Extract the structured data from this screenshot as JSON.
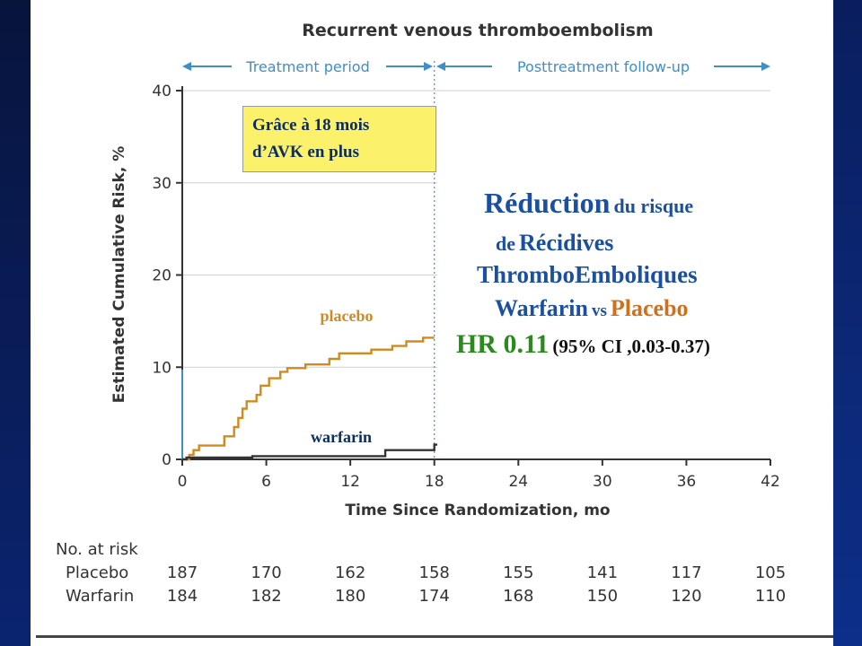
{
  "chart_data": {
    "type": "line",
    "title": "Recurrent venous thromboembolism",
    "xlabel": "Time Since Randomization, mo",
    "ylabel": "Estimated Cumulative Risk, %",
    "xlim": [
      0,
      42
    ],
    "ylim": [
      0,
      40
    ],
    "x_ticks": [
      "0",
      "6",
      "12",
      "18",
      "24",
      "30",
      "36",
      "42"
    ],
    "y_ticks": [
      "0",
      "10",
      "20",
      "30",
      "40"
    ],
    "periods": {
      "treatment": "Treatment period",
      "followup": "Posttreatment follow-up",
      "boundary_x": 18
    },
    "series": [
      {
        "name": "placebo",
        "color": "#d08a20",
        "points": [
          [
            0,
            0
          ],
          [
            0.5,
            0
          ],
          [
            0.5,
            0.5
          ],
          [
            0.8,
            0.5
          ],
          [
            0.8,
            1
          ],
          [
            1.2,
            1
          ],
          [
            1.2,
            1.5
          ],
          [
            3,
            1.5
          ],
          [
            3,
            2.5
          ],
          [
            3.7,
            2.5
          ],
          [
            3.7,
            3.5
          ],
          [
            4,
            3.5
          ],
          [
            4,
            4.5
          ],
          [
            4.3,
            4.5
          ],
          [
            4.3,
            5.5
          ],
          [
            4.6,
            5.5
          ],
          [
            4.6,
            6.3
          ],
          [
            5.3,
            6.3
          ],
          [
            5.3,
            7
          ],
          [
            5.6,
            7
          ],
          [
            5.6,
            8
          ],
          [
            6.2,
            8
          ],
          [
            6.2,
            8.8
          ],
          [
            7,
            8.8
          ],
          [
            7,
            9.5
          ],
          [
            7.5,
            9.5
          ],
          [
            7.5,
            9.9
          ],
          [
            8.8,
            9.9
          ],
          [
            8.8,
            10.3
          ],
          [
            10.5,
            10.3
          ],
          [
            10.5,
            10.9
          ],
          [
            11.2,
            10.9
          ],
          [
            11.2,
            11.5
          ],
          [
            13.5,
            11.5
          ],
          [
            13.5,
            11.9
          ],
          [
            15,
            11.9
          ],
          [
            15,
            12.3
          ],
          [
            16,
            12.3
          ],
          [
            16,
            12.8
          ],
          [
            17.2,
            12.8
          ],
          [
            17.2,
            13.2
          ],
          [
            18,
            13.2
          ]
        ]
      },
      {
        "name": "warfarin",
        "color": "#333333",
        "points": [
          [
            0,
            0
          ],
          [
            0.3,
            0
          ],
          [
            0.3,
            0.2
          ],
          [
            5,
            0.2
          ],
          [
            5,
            0.35
          ],
          [
            14.5,
            0.35
          ],
          [
            14.5,
            1
          ],
          [
            18,
            1
          ],
          [
            18,
            1.6
          ],
          [
            18.3,
            1.6
          ]
        ]
      }
    ],
    "at_risk": {
      "header": "No. at risk",
      "rows": [
        {
          "label": "Placebo",
          "values": [
            "187",
            "170",
            "162",
            "158",
            "155",
            "141",
            "117",
            "105"
          ]
        },
        {
          "label": "Warfarin",
          "values": [
            "184",
            "182",
            "180",
            "174",
            "168",
            "150",
            "120",
            "110"
          ]
        }
      ]
    }
  },
  "callout_box": {
    "line1": "Grâce à 18 mois",
    "line2": "d’AVK en plus"
  },
  "summary_box": {
    "reduction_word": "Réduction",
    "du_risque": "du risque",
    "de_word": "de",
    "recidives": "Récidives",
    "thrombo": "ThromboEmboliques",
    "warfarin": "Warfarin",
    "vs": "vs",
    "placebo": "Placebo",
    "hr": "HR 0.11",
    "ci": "(95% CI ,0.03-0.37)"
  },
  "colors": {
    "placebo_line": "#d08a20",
    "warfarin_line": "#333333",
    "axis_blue": "#3d8fc8",
    "summary_blue": "#1b4fa0",
    "summary_green": "#2a8a1e",
    "summary_orange": "#d0701a"
  }
}
